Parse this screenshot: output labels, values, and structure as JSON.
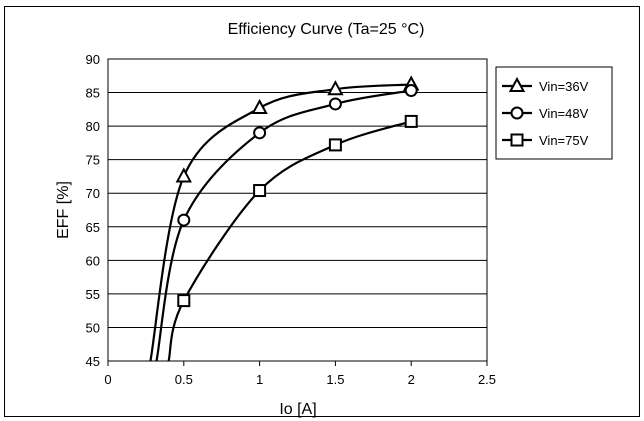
{
  "chart_data": {
    "type": "line",
    "title": "Efficiency Curve (Ta=25 °C)",
    "xlabel": "Io [A]",
    "ylabel": "EFF [%]",
    "xlim": [
      0,
      2.5
    ],
    "ylim": [
      45,
      90
    ],
    "x_ticks": [
      "0",
      "0.5",
      "1",
      "1.5",
      "2",
      "2.5"
    ],
    "y_ticks": [
      "45",
      "50",
      "55",
      "60",
      "65",
      "70",
      "75",
      "80",
      "85",
      "90"
    ],
    "grid": "horizontal",
    "legend_position": "right",
    "series": [
      {
        "name": "Vin=36V",
        "marker": "triangle",
        "color": "#000000",
        "points": [
          [
            0.5,
            72.5
          ],
          [
            1,
            82.7
          ],
          [
            1.5,
            85.5
          ],
          [
            2,
            86.2
          ]
        ],
        "curve_start": [
          0.28,
          45
        ]
      },
      {
        "name": "Vin=48V",
        "marker": "circle",
        "color": "#000000",
        "points": [
          [
            0.5,
            66.0
          ],
          [
            1,
            79.0
          ],
          [
            1.5,
            83.3
          ],
          [
            2,
            85.3
          ]
        ],
        "curve_start": [
          0.32,
          45
        ]
      },
      {
        "name": "Vin=75V",
        "marker": "square",
        "color": "#000000",
        "points": [
          [
            0.5,
            54.0
          ],
          [
            1,
            70.4
          ],
          [
            1.5,
            77.2
          ],
          [
            2,
            80.7
          ]
        ],
        "curve_start": [
          0.4,
          45
        ]
      }
    ]
  }
}
